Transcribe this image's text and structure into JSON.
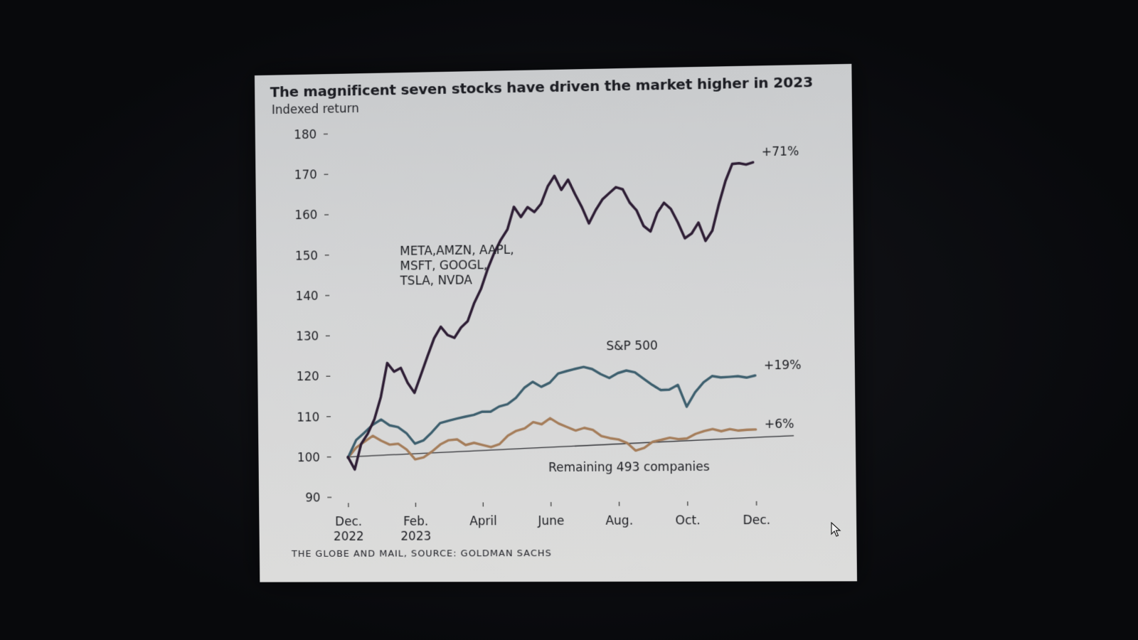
{
  "chart_data": {
    "type": "line",
    "title": "The magnificent seven stocks have driven the market higher in 2023",
    "subtitle": "Indexed return",
    "source": "THE GLOBE AND MAIL, SOURCE: GOLDMAN SACHS",
    "ylim": [
      90,
      180
    ],
    "yticks": [
      "180",
      "170",
      "160",
      "150",
      "140",
      "130",
      "120",
      "110",
      "100",
      "90"
    ],
    "xlim": [
      0,
      13
    ],
    "xticks": [
      {
        "x": 0,
        "line1": "Dec.",
        "line2": "2022"
      },
      {
        "x": 2,
        "line1": "Feb.",
        "line2": "2023"
      },
      {
        "x": 4,
        "line1": "April",
        "line2": ""
      },
      {
        "x": 6,
        "line1": "June",
        "line2": ""
      },
      {
        "x": 8,
        "line1": "Aug.",
        "line2": ""
      },
      {
        "x": 10,
        "line1": "Oct.",
        "line2": ""
      },
      {
        "x": 12,
        "line1": "Dec.",
        "line2": ""
      }
    ],
    "baseline": 100,
    "series": [
      {
        "label_lines": [
          "META,AMZN, AAPL,",
          "MSFT, GOOGL,",
          "TSLA, NVDA"
        ],
        "color": "#2e1e35",
        "end_label": "+71%",
        "x": [
          0,
          0.2,
          0.4,
          0.6,
          0.8,
          1.0,
          1.2,
          1.4,
          1.6,
          1.8,
          2.0,
          2.2,
          2.4,
          2.6,
          2.8,
          3.0,
          3.2,
          3.4,
          3.6,
          3.8,
          4.0,
          4.2,
          4.4,
          4.6,
          4.8,
          5.0,
          5.2,
          5.4,
          5.6,
          5.8,
          6.0,
          6.2,
          6.4,
          6.6,
          6.8,
          7.0,
          7.2,
          7.4,
          7.6,
          7.8,
          8.0,
          8.2,
          8.4,
          8.6,
          8.8,
          9.0,
          9.2,
          9.4,
          9.6,
          9.8,
          10.0,
          10.2,
          10.4,
          10.6,
          10.8,
          11.0,
          11.2,
          11.4,
          11.6,
          11.8,
          12.0
        ],
        "y": [
          100,
          97,
          103,
          106,
          109,
          115,
          123,
          121,
          122,
          118,
          116,
          120,
          125,
          129,
          132,
          130,
          129,
          132,
          133,
          138,
          141,
          146,
          150,
          153,
          156,
          161,
          159,
          161,
          160,
          162,
          166,
          169,
          165,
          168,
          164,
          161,
          157,
          160,
          163,
          164,
          166,
          165,
          162,
          160,
          156,
          155,
          159,
          162,
          160,
          157,
          153,
          154,
          157,
          152,
          155,
          161,
          167,
          171,
          171,
          171,
          171
        ]
      },
      {
        "label_lines": [
          "S&P 500"
        ],
        "color": "#3d5f6e",
        "end_label": "+19%",
        "x": [
          0,
          0.25,
          0.5,
          0.75,
          1.0,
          1.25,
          1.5,
          1.75,
          2.0,
          2.25,
          2.5,
          2.75,
          3.0,
          3.25,
          3.5,
          3.75,
          4.0,
          4.25,
          4.5,
          4.75,
          5.0,
          5.25,
          5.5,
          5.75,
          6.0,
          6.25,
          6.5,
          6.75,
          7.0,
          7.25,
          7.5,
          7.75,
          8.0,
          8.25,
          8.5,
          8.75,
          9.0,
          9.25,
          9.5,
          9.75,
          10.0,
          10.25,
          10.5,
          10.75,
          11.0,
          11.25,
          11.5,
          11.75,
          12.0
        ],
        "y": [
          100,
          104,
          106,
          108,
          109,
          108,
          107,
          106,
          103,
          104,
          106,
          108,
          109,
          109,
          110,
          110,
          111,
          111,
          112,
          113,
          114,
          117,
          118,
          117,
          118,
          120,
          121,
          121,
          122,
          121,
          120,
          119,
          120,
          121,
          120,
          119,
          117,
          116,
          116,
          117,
          112,
          115,
          118,
          119,
          119,
          119,
          119,
          119,
          119
        ]
      },
      {
        "label_lines": [
          "Remaining 493 companies"
        ],
        "color": "#a57d5a",
        "end_label": "+6%",
        "x": [
          0,
          0.25,
          0.5,
          0.75,
          1.0,
          1.25,
          1.5,
          1.75,
          2.0,
          2.25,
          2.5,
          2.75,
          3.0,
          3.25,
          3.5,
          3.75,
          4.0,
          4.25,
          4.5,
          4.75,
          5.0,
          5.25,
          5.5,
          5.75,
          6.0,
          6.25,
          6.5,
          6.75,
          7.0,
          7.25,
          7.5,
          7.75,
          8.0,
          8.25,
          8.5,
          8.75,
          9.0,
          9.25,
          9.5,
          9.75,
          10.0,
          10.25,
          10.5,
          10.75,
          11.0,
          11.25,
          11.5,
          11.75,
          12.0
        ],
        "y": [
          100,
          102,
          104,
          105,
          104,
          103,
          103,
          102,
          99,
          100,
          101,
          103,
          104,
          104,
          103,
          103,
          103,
          102,
          103,
          105,
          106,
          107,
          108,
          108,
          109,
          108,
          107,
          106,
          107,
          106,
          105,
          104,
          104,
          103,
          101,
          102,
          103,
          104,
          104,
          104,
          104,
          105,
          106,
          106,
          106,
          106,
          106,
          106,
          106
        ]
      }
    ]
  }
}
